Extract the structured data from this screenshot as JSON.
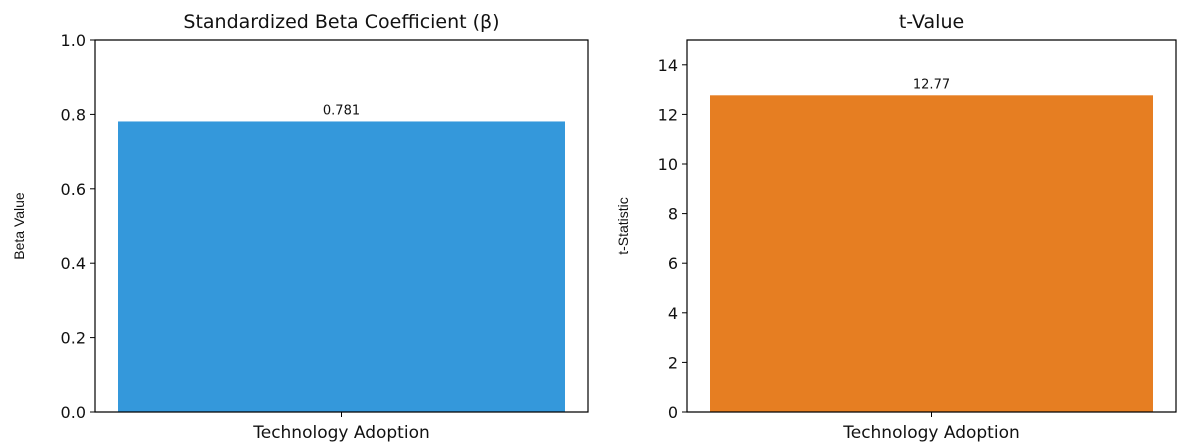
{
  "chart_data": [
    {
      "type": "bar",
      "title": "Standardized Beta Coefficient (β)",
      "xlabel": "",
      "ylabel": "Beta Value",
      "categories": [
        "Technology Adoption"
      ],
      "values": [
        0.781
      ],
      "data_labels": [
        "0.781"
      ],
      "ylim": [
        0,
        1.0
      ],
      "yticks": [
        0.0,
        0.2,
        0.4,
        0.6,
        0.8,
        1.0
      ],
      "ytick_labels": [
        "0.0",
        "0.2",
        "0.4",
        "0.6",
        "0.8",
        "1.0"
      ],
      "color": "#3498db",
      "grid": false
    },
    {
      "type": "bar",
      "title": "t-Value",
      "xlabel": "",
      "ylabel": "t-Statistic",
      "categories": [
        "Technology Adoption"
      ],
      "values": [
        12.77
      ],
      "data_labels": [
        "12.77"
      ],
      "ylim": [
        0,
        15
      ],
      "yticks": [
        0,
        2,
        4,
        6,
        8,
        10,
        12,
        14
      ],
      "ytick_labels": [
        "0",
        "2",
        "4",
        "6",
        "8",
        "10",
        "12",
        "14"
      ],
      "color": "#e67e22",
      "grid": false
    }
  ]
}
